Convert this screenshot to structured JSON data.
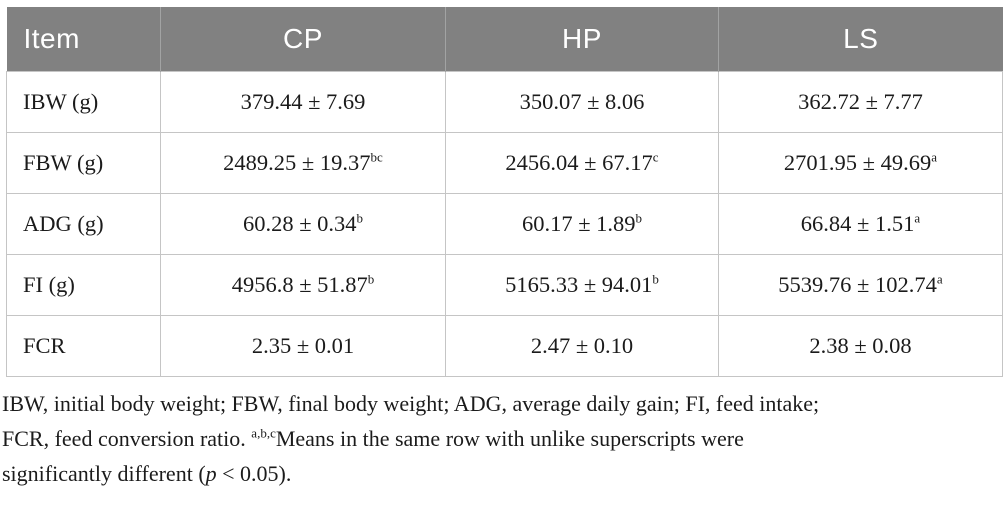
{
  "colors": {
    "header_bg": "#818181",
    "header_divider": "#a2a3a3",
    "header_text": "#ffffff",
    "body_border": "#c5c5c5",
    "text": "#1b1b1b",
    "page_bg": "#ffffff"
  },
  "table": {
    "columns": [
      "Item",
      "CP",
      "HP",
      "LS"
    ],
    "rows": [
      {
        "item": "IBW (g)",
        "cells": [
          {
            "text": "379.44 ± 7.69",
            "sup": ""
          },
          {
            "text": "350.07 ± 8.06",
            "sup": ""
          },
          {
            "text": "362.72 ± 7.77",
            "sup": ""
          }
        ]
      },
      {
        "item": "FBW (g)",
        "cells": [
          {
            "text": "2489.25 ± 19.37",
            "sup": "bc"
          },
          {
            "text": "2456.04 ± 67.17",
            "sup": "c"
          },
          {
            "text": "2701.95 ± 49.69",
            "sup": "a"
          }
        ]
      },
      {
        "item": "ADG (g)",
        "cells": [
          {
            "text": "60.28 ± 0.34",
            "sup": "b"
          },
          {
            "text": "60.17 ± 1.89",
            "sup": "b"
          },
          {
            "text": "66.84 ± 1.51",
            "sup": "a"
          }
        ]
      },
      {
        "item": "FI (g)",
        "cells": [
          {
            "text": "4956.8 ± 51.87",
            "sup": "b"
          },
          {
            "text": "5165.33 ± 94.01",
            "sup": "b"
          },
          {
            "text": "5539.76 ± 102.74",
            "sup": "a"
          }
        ]
      },
      {
        "item": "FCR",
        "cells": [
          {
            "text": "2.35 ± 0.01",
            "sup": ""
          },
          {
            "text": "2.47 ± 0.10",
            "sup": ""
          },
          {
            "text": "2.38 ± 0.08",
            "sup": ""
          }
        ]
      }
    ]
  },
  "footnote": {
    "line1": "IBW, initial body weight; FBW, final body weight; ADG, average daily gain; FI, feed intake;",
    "line2_prefix": "FCR, feed conversion ratio. ",
    "line2_sup": "a,b,c",
    "line2_rest": "Means in the same row with unlike superscripts were",
    "line3_prefix": "significantly different (",
    "line3_italic": "p",
    "line3_suffix": " < 0.05)."
  }
}
